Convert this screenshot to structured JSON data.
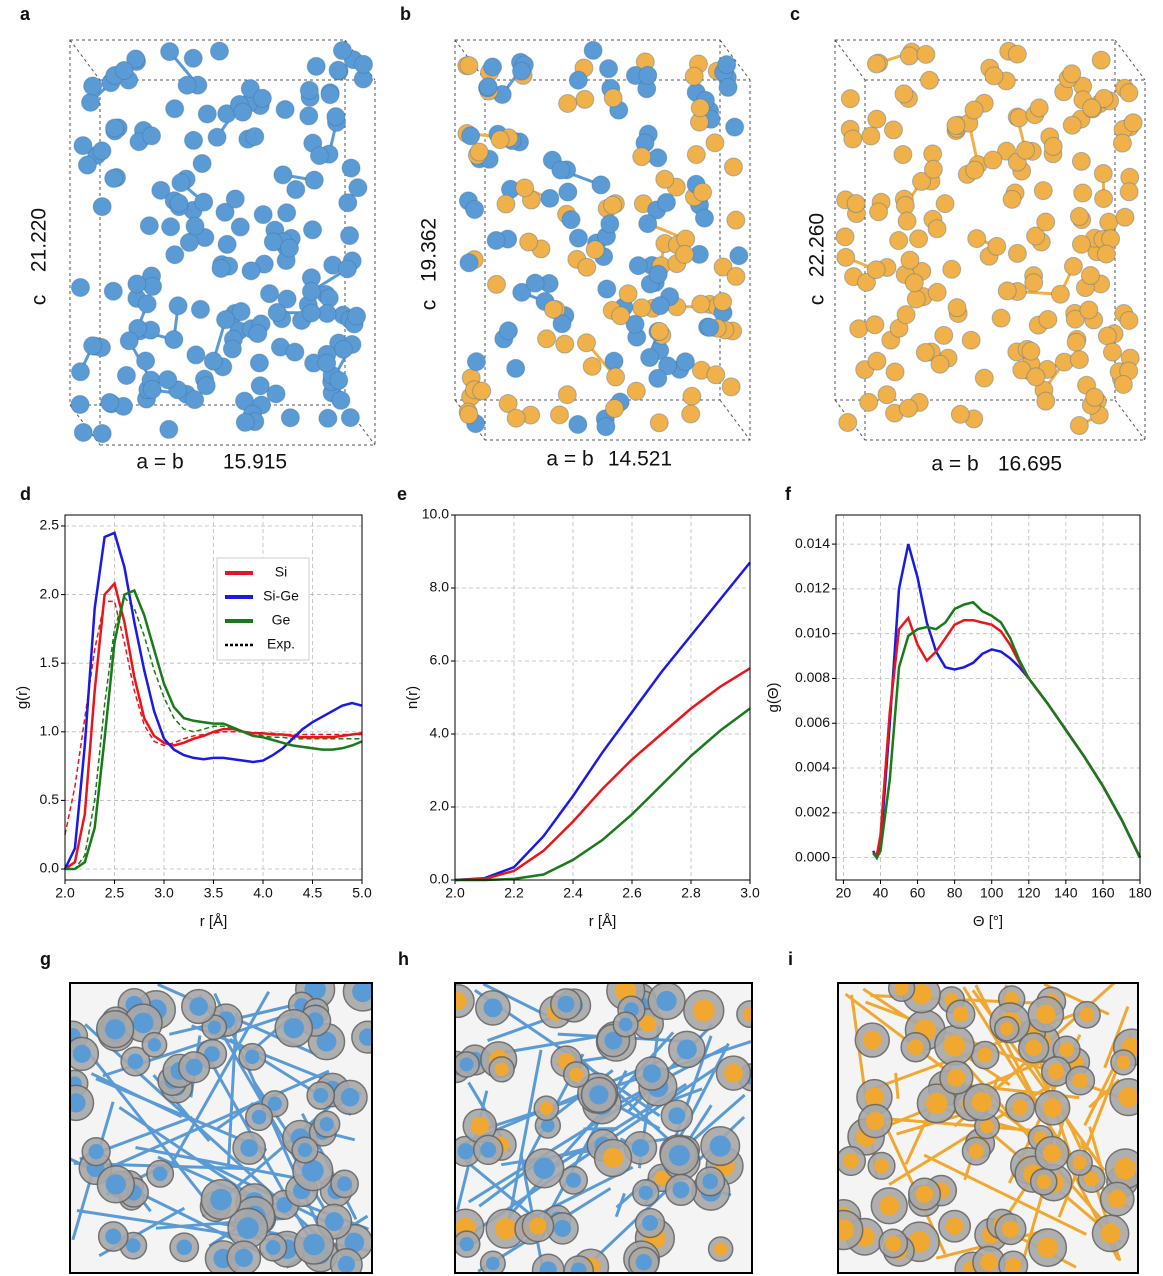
{
  "structures": [
    {
      "label": "a",
      "c_label": "c",
      "c_value": "21.220",
      "ab_label": "a = b",
      "ab_value": "15.915"
    },
    {
      "label": "b",
      "c_label": "c",
      "c_value": "19.362",
      "ab_label": "a = b",
      "ab_value": "14.521"
    },
    {
      "label": "c",
      "c_label": "c",
      "c_value": "22.260",
      "ab_label": "a = b",
      "ab_value": "16.695"
    }
  ],
  "density_panels": [
    {
      "label": "g"
    },
    {
      "label": "h"
    },
    {
      "label": "i"
    }
  ],
  "chart_data": [
    {
      "type": "line",
      "panel": "d",
      "xlabel": "r [Å]",
      "ylabel": "g(r)",
      "x": [
        2.0,
        2.1,
        2.2,
        2.3,
        2.4,
        2.5,
        2.6,
        2.7,
        2.8,
        2.9,
        3.0,
        3.1,
        3.2,
        3.3,
        3.4,
        3.5,
        3.6,
        3.7,
        3.8,
        3.9,
        4.0,
        4.1,
        4.2,
        4.3,
        4.4,
        4.5,
        4.6,
        4.7,
        4.8,
        4.9,
        5.0
      ],
      "xlim": [
        2.0,
        5.0
      ],
      "xticks": [
        {
          "value": 2.0,
          "label": "2.0"
        },
        {
          "value": 2.5,
          "label": "2.5"
        },
        {
          "value": 3.0,
          "label": "3.0"
        },
        {
          "value": 3.5,
          "label": "3.5"
        },
        {
          "value": 4.0,
          "label": "4.0"
        },
        {
          "value": 4.5,
          "label": "4.5"
        },
        {
          "value": 5.0,
          "label": "5.0"
        }
      ],
      "ylim": [
        -0.08,
        2.58
      ],
      "yticks": [
        {
          "value": 0,
          "label": "0.0"
        },
        0.5,
        {
          "value": 1,
          "label": "1.0"
        },
        1.5,
        {
          "value": 2,
          "label": "2.0"
        },
        2.5
      ],
      "grid": true,
      "legend": "upper right",
      "series": [
        {
          "name": "Si",
          "color": "#e8161b",
          "values": [
            0.0,
            0.05,
            0.4,
            1.3,
            2.0,
            2.08,
            1.8,
            1.4,
            1.1,
            0.97,
            0.92,
            0.9,
            0.92,
            0.95,
            0.97,
            1.0,
            1.02,
            1.02,
            1.0,
            0.99,
            0.99,
            0.98,
            0.98,
            0.97,
            0.96,
            0.96,
            0.96,
            0.96,
            0.97,
            0.98,
            0.99
          ]
        },
        {
          "name": "Si-Ge",
          "color": "#1a1ae6",
          "values": [
            0.0,
            0.15,
            0.9,
            1.9,
            2.42,
            2.45,
            2.2,
            1.8,
            1.45,
            1.15,
            0.95,
            0.87,
            0.83,
            0.81,
            0.8,
            0.81,
            0.81,
            0.8,
            0.79,
            0.78,
            0.79,
            0.83,
            0.88,
            0.95,
            1.02,
            1.07,
            1.11,
            1.15,
            1.19,
            1.21,
            1.19
          ]
        },
        {
          "name": "Ge",
          "color": "#1a7a1a",
          "values": [
            0.0,
            0.0,
            0.05,
            0.3,
            0.95,
            1.65,
            2.0,
            2.03,
            1.85,
            1.6,
            1.35,
            1.18,
            1.1,
            1.08,
            1.07,
            1.06,
            1.06,
            1.03,
            1.0,
            0.97,
            0.96,
            0.94,
            0.92,
            0.9,
            0.89,
            0.88,
            0.87,
            0.87,
            0.88,
            0.9,
            0.93
          ]
        }
      ],
      "exp": {
        "name": "Exp.",
        "color": "#000000",
        "series": [
          {
            "color": "#e8161b",
            "values": [
              0.25,
              0.6,
              1.1,
              1.6,
              1.95,
              1.95,
              1.65,
              1.3,
              1.05,
              0.93,
              0.9,
              0.92,
              0.95,
              0.97,
              0.98,
              0.99,
              1.0,
              1.0,
              1.0,
              0.99,
              0.99,
              0.99,
              0.98,
              0.98,
              0.98,
              0.98,
              0.98,
              0.98,
              0.98,
              0.98,
              0.98
            ]
          },
          {
            "color": "#1a7a1a",
            "values": [
              0.0,
              0.0,
              0.1,
              0.5,
              1.2,
              1.75,
              1.98,
              1.9,
              1.7,
              1.45,
              1.25,
              1.1,
              1.02,
              1.0,
              1.02,
              1.04,
              1.04,
              1.02,
              1.0,
              0.99,
              0.97,
              0.96,
              0.96,
              0.95,
              0.95,
              0.95,
              0.95,
              0.95,
              0.95,
              0.95,
              0.95
            ]
          }
        ]
      }
    },
    {
      "type": "line",
      "panel": "e",
      "xlabel": "r [Å]",
      "ylabel": "n(r)",
      "x": [
        2.0,
        2.1,
        2.2,
        2.3,
        2.4,
        2.5,
        2.6,
        2.7,
        2.8,
        2.9,
        3.0
      ],
      "xlim": [
        2.0,
        3.0
      ],
      "xticks": [
        {
          "value": 2.0,
          "label": "2.0"
        },
        2.2,
        2.4,
        2.6,
        2.8,
        {
          "value": 3.0,
          "label": "3.0"
        }
      ],
      "ylim": [
        0,
        10
      ],
      "yticks": [
        {
          "value": 0,
          "label": "0.0"
        },
        {
          "value": 2,
          "label": "2.0"
        },
        {
          "value": 4,
          "label": "4.0"
        },
        {
          "value": 6,
          "label": "6.0"
        },
        {
          "value": 8,
          "label": "8.0"
        },
        {
          "value": 10,
          "label": "10.0"
        }
      ],
      "grid": true,
      "series": [
        {
          "color": "#1a1ae6",
          "values": [
            0,
            0.05,
            0.35,
            1.2,
            2.3,
            3.5,
            4.6,
            5.7,
            6.7,
            7.7,
            8.7
          ]
        },
        {
          "color": "#e8161b",
          "values": [
            0,
            0.03,
            0.25,
            0.8,
            1.6,
            2.5,
            3.3,
            4.0,
            4.7,
            5.3,
            5.8
          ]
        },
        {
          "color": "#1a7a1a",
          "values": [
            0,
            0,
            0.03,
            0.15,
            0.55,
            1.1,
            1.8,
            2.6,
            3.4,
            4.1,
            4.7
          ]
        }
      ]
    },
    {
      "type": "line",
      "panel": "f",
      "xlabel": "Θ [°]",
      "ylabel": "g(Θ)",
      "x": [
        36,
        38,
        40,
        45,
        50,
        55,
        60,
        65,
        70,
        75,
        80,
        85,
        90,
        95,
        100,
        105,
        110,
        115,
        120,
        130,
        140,
        150,
        160,
        170,
        180
      ],
      "xlim": [
        16,
        180
      ],
      "xticks": [
        20,
        40,
        60,
        80,
        100,
        120,
        140,
        160,
        180
      ],
      "ylim": [
        -0.001,
        0.0153
      ],
      "yticks": [
        {
          "value": 0,
          "label": "0.000"
        },
        {
          "value": 0.002,
          "label": "0.002"
        },
        {
          "value": 0.004,
          "label": "0.004"
        },
        {
          "value": 0.006,
          "label": "0.006"
        },
        {
          "value": 0.008,
          "label": "0.008"
        },
        {
          "value": 0.01,
          "label": "0.010"
        },
        {
          "value": 0.012,
          "label": "0.012"
        },
        {
          "value": 0.014,
          "label": "0.014"
        }
      ],
      "grid": true,
      "series": [
        {
          "color": "#1a1ae6",
          "values": [
            0.0003,
            0,
            0.0005,
            0.006,
            0.012,
            0.014,
            0.0125,
            0.0105,
            0.0092,
            0.0085,
            0.0084,
            0.0085,
            0.0087,
            0.0091,
            0.0093,
            0.0092,
            0.0089,
            0.0085,
            0.008,
            0.0069,
            0.0057,
            0.0045,
            0.0032,
            0.0017,
            0
          ]
        },
        {
          "color": "#e8161b",
          "values": [
            0.0002,
            0.0001,
            0.001,
            0.0065,
            0.0102,
            0.0107,
            0.0095,
            0.0088,
            0.0092,
            0.0098,
            0.0104,
            0.0106,
            0.0106,
            0.0105,
            0.0104,
            0.0101,
            0.0095,
            0.0087,
            0.008,
            0.0069,
            0.0057,
            0.0045,
            0.0032,
            0.0017,
            0
          ]
        },
        {
          "color": "#1a7a1a",
          "values": [
            0.0002,
            0,
            0.0003,
            0.0035,
            0.0085,
            0.0099,
            0.0102,
            0.0103,
            0.0102,
            0.0105,
            0.0111,
            0.0113,
            0.0114,
            0.011,
            0.0108,
            0.0105,
            0.0098,
            0.0088,
            0.008,
            0.0069,
            0.0057,
            0.0045,
            0.0032,
            0.0017,
            0
          ]
        }
      ]
    }
  ]
}
